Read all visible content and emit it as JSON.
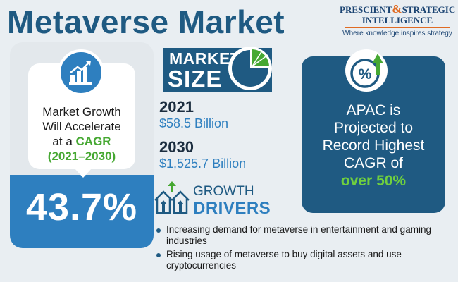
{
  "title": "Metaverse Market",
  "logo": {
    "name_part1": "PRESCIENT",
    "ampersand": "&",
    "name_part2": "STRATEGIC",
    "name_line2": "INTELLIGENCE",
    "tagline": "Where knowledge inspires strategy"
  },
  "growth": {
    "line1": "Market Growth",
    "line2": "Will Accelerate",
    "line3_prefix": "at a ",
    "cagr_word": "CAGR",
    "years": "(2021–2030)",
    "value": "43.7%"
  },
  "market_size": {
    "label_top": "MARKET",
    "label_bottom": "SIZE",
    "entries": [
      {
        "year": "2021",
        "amount": "$58.5 Billion"
      },
      {
        "year": "2030",
        "amount": "$1,525.7 Billion"
      }
    ]
  },
  "apac": {
    "line1": "APAC is",
    "line2": "Projected to",
    "line3": "Record Highest",
    "line4": "CAGR of",
    "accent": "over 50%"
  },
  "drivers": {
    "label_top": "GROWTH",
    "label_bottom": "DRIVERS",
    "items": [
      "Increasing demand for metaverse in entertainment and gaming industries",
      "Rising usage of metaverse to buy digital assets and use cryptocurrencies"
    ]
  },
  "colors": {
    "navy": "#1f5a82",
    "blue": "#2e7fbf",
    "green": "#46a832",
    "bright_green": "#6fcf3f",
    "orange": "#e06b23",
    "background": "#e9eef2"
  },
  "icons": [
    "bar-growth-chart-icon",
    "pie-chart-icon",
    "percent-up-arrow-icon",
    "growth-houses-icon"
  ]
}
